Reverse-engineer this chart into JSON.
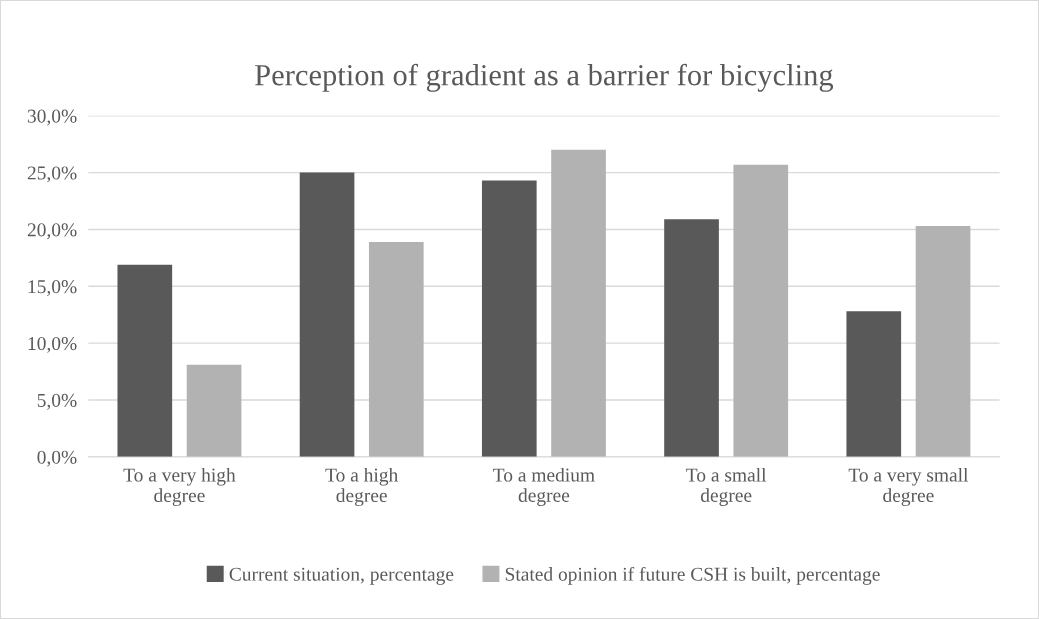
{
  "chart_data": {
    "type": "bar",
    "title": "Perception of gradient as a barrier for bicycling",
    "categories": [
      "To a very high degree",
      "To a high degree",
      "To a medium degree",
      "To a small degree",
      "To a very small degree"
    ],
    "series": [
      {
        "name": "Current situation, percentage",
        "color": "#595959",
        "values": [
          16.9,
          25.0,
          24.3,
          20.9,
          12.8
        ]
      },
      {
        "name": "Stated opinion if future CSH is built, percentage",
        "color": "#b2b2b2",
        "values": [
          8.1,
          18.9,
          27.0,
          25.7,
          20.3
        ]
      }
    ],
    "ylim": [
      0,
      30
    ],
    "yticks": [
      {
        "value": 0,
        "label": "0,0%"
      },
      {
        "value": 5,
        "label": "5,0%"
      },
      {
        "value": 10,
        "label": "10,0%"
      },
      {
        "value": 15,
        "label": "15,0%"
      },
      {
        "value": 20,
        "label": "20,0%"
      },
      {
        "value": 25,
        "label": "25,0%"
      },
      {
        "value": 30,
        "label": "30,0%"
      }
    ],
    "grid": "y",
    "legend": "bottom"
  }
}
